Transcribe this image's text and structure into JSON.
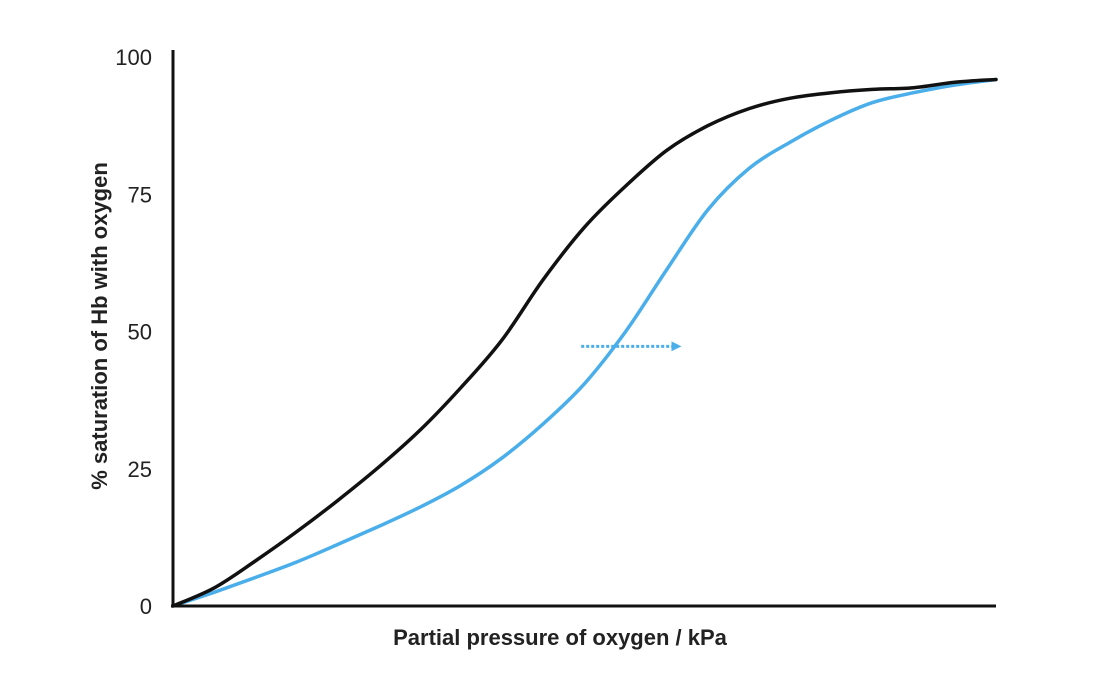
{
  "chart_data": {
    "type": "line",
    "title": "",
    "xlabel": "Partial pressure of oxygen / kPa",
    "ylabel": "% saturation of Hb with oxygen",
    "xlim": [
      0,
      100
    ],
    "ylim": [
      0,
      100
    ],
    "yticks": [
      0,
      25,
      50,
      75,
      100
    ],
    "ytick_labels": [
      "0",
      "25",
      "50",
      "75",
      "100"
    ],
    "xticks": [],
    "grid": false,
    "legend": "none",
    "colors": {
      "axis": "#111111",
      "series1": "#111111",
      "series2": "#4aaeea"
    },
    "series": [
      {
        "color": "#111111",
        "x": [
          0,
          5,
          10,
          15,
          20,
          25,
          30,
          35,
          40,
          45,
          50,
          55,
          60,
          65,
          70,
          75,
          80,
          85,
          90,
          95,
          100
        ],
        "y": [
          0,
          3.3,
          8.2,
          13.5,
          19.2,
          25.3,
          32.0,
          39.8,
          48.5,
          59.5,
          69.0,
          76.5,
          83.0,
          87.5,
          90.6,
          92.5,
          93.5,
          94.1,
          94.4,
          95.4,
          95.9
        ]
      },
      {
        "color": "#4aaeea",
        "x": [
          0,
          5,
          10,
          15,
          20,
          25,
          30,
          35,
          40,
          45,
          50,
          55,
          60,
          65,
          70,
          75,
          80,
          85,
          90,
          95,
          100
        ],
        "y": [
          0,
          2.5,
          5.2,
          8.0,
          11.2,
          14.5,
          18.0,
          22.0,
          27.0,
          33.2,
          40.5,
          50.0,
          61.3,
          72.2,
          79.7,
          84.5,
          88.5,
          91.7,
          93.5,
          94.9,
          95.9
        ]
      }
    ],
    "annotations": [
      {
        "type": "arrow",
        "style": "dotted",
        "color": "#4aaeea",
        "x_from": 49.6,
        "x_to": 61.9,
        "y": 47.3
      }
    ]
  }
}
